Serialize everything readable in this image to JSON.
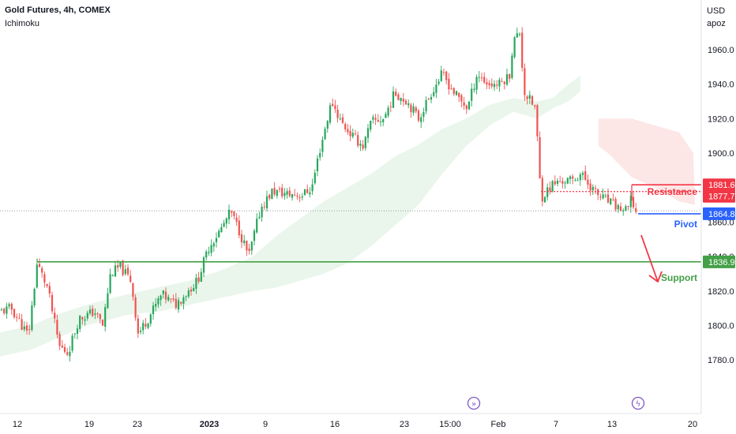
{
  "header": {
    "title": "Gold Futures, 4h, COMEX",
    "indicator": "Ichimoku",
    "currency": "USD",
    "account": "apoz"
  },
  "colors": {
    "up": "#26a65b",
    "down": "#ef5350",
    "resistance": "#f23645",
    "pivot": "#2962ff",
    "support": "#43a047",
    "cloud_bull": "#e6f4e8",
    "cloud_bear": "#fde3e3",
    "event": "#7e57c2",
    "last_price": "#131722"
  },
  "annotations": {
    "resistance_label": "Resistance",
    "pivot_label": "Pivot",
    "support_label": "Support"
  },
  "chart_data": {
    "type": "candlestick",
    "ylim": [
      1768,
      1990
    ],
    "y_ticks": [
      1780,
      1800,
      1820,
      1840,
      1860,
      1880,
      1900,
      1920,
      1940,
      1960
    ],
    "x_ticks": [
      "12",
      "19",
      "23",
      "2023",
      "9",
      "16",
      "23",
      "15:00",
      "Feb",
      "7",
      "13",
      "20"
    ],
    "x_tick_pos": [
      22,
      113,
      174,
      265,
      336,
      424,
      512,
      570,
      631,
      704,
      775,
      877
    ],
    "levels": {
      "resistance_top": 1881.6,
      "resistance_bottom": 1877.7,
      "pivot": 1864.8,
      "support": 1836.9
    },
    "price_tags": [
      "1881.6",
      "1877.7",
      "1864.8",
      "1836.9"
    ],
    "last_price": 1866.5,
    "anchors": [
      [
        0,
        1808
      ],
      [
        14,
        1810
      ],
      [
        36,
        1794
      ],
      [
        47,
        1836
      ],
      [
        60,
        1822
      ],
      [
        75,
        1788
      ],
      [
        86,
        1784
      ],
      [
        100,
        1804
      ],
      [
        120,
        1808
      ],
      [
        130,
        1800
      ],
      [
        140,
        1830
      ],
      [
        152,
        1834
      ],
      [
        166,
        1826
      ],
      [
        175,
        1795
      ],
      [
        190,
        1806
      ],
      [
        205,
        1818
      ],
      [
        222,
        1812
      ],
      [
        250,
        1826
      ],
      [
        265,
        1846
      ],
      [
        280,
        1856
      ],
      [
        292,
        1866
      ],
      [
        302,
        1856
      ],
      [
        315,
        1840
      ],
      [
        330,
        1868
      ],
      [
        345,
        1878
      ],
      [
        365,
        1876
      ],
      [
        384,
        1876
      ],
      [
        395,
        1880
      ],
      [
        403,
        1898
      ],
      [
        420,
        1930
      ],
      [
        432,
        1918
      ],
      [
        446,
        1910
      ],
      [
        460,
        1904
      ],
      [
        470,
        1918
      ],
      [
        486,
        1920
      ],
      [
        500,
        1935
      ],
      [
        516,
        1930
      ],
      [
        530,
        1920
      ],
      [
        546,
        1935
      ],
      [
        560,
        1946
      ],
      [
        575,
        1935
      ],
      [
        592,
        1926
      ],
      [
        604,
        1946
      ],
      [
        618,
        1940
      ],
      [
        632,
        1940
      ],
      [
        645,
        1945
      ],
      [
        650,
        1965
      ],
      [
        658,
        1970
      ],
      [
        664,
        1935
      ],
      [
        672,
        1930
      ],
      [
        678,
        1926
      ],
      [
        685,
        1874
      ],
      [
        700,
        1882
      ],
      [
        714,
        1884
      ],
      [
        725,
        1884
      ],
      [
        735,
        1888
      ],
      [
        746,
        1882
      ],
      [
        756,
        1876
      ],
      [
        770,
        1872
      ],
      [
        784,
        1868
      ],
      [
        794,
        1866
      ],
      [
        800,
        1874
      ],
      [
        804,
        1866
      ],
      [
        808,
        1864
      ]
    ]
  }
}
